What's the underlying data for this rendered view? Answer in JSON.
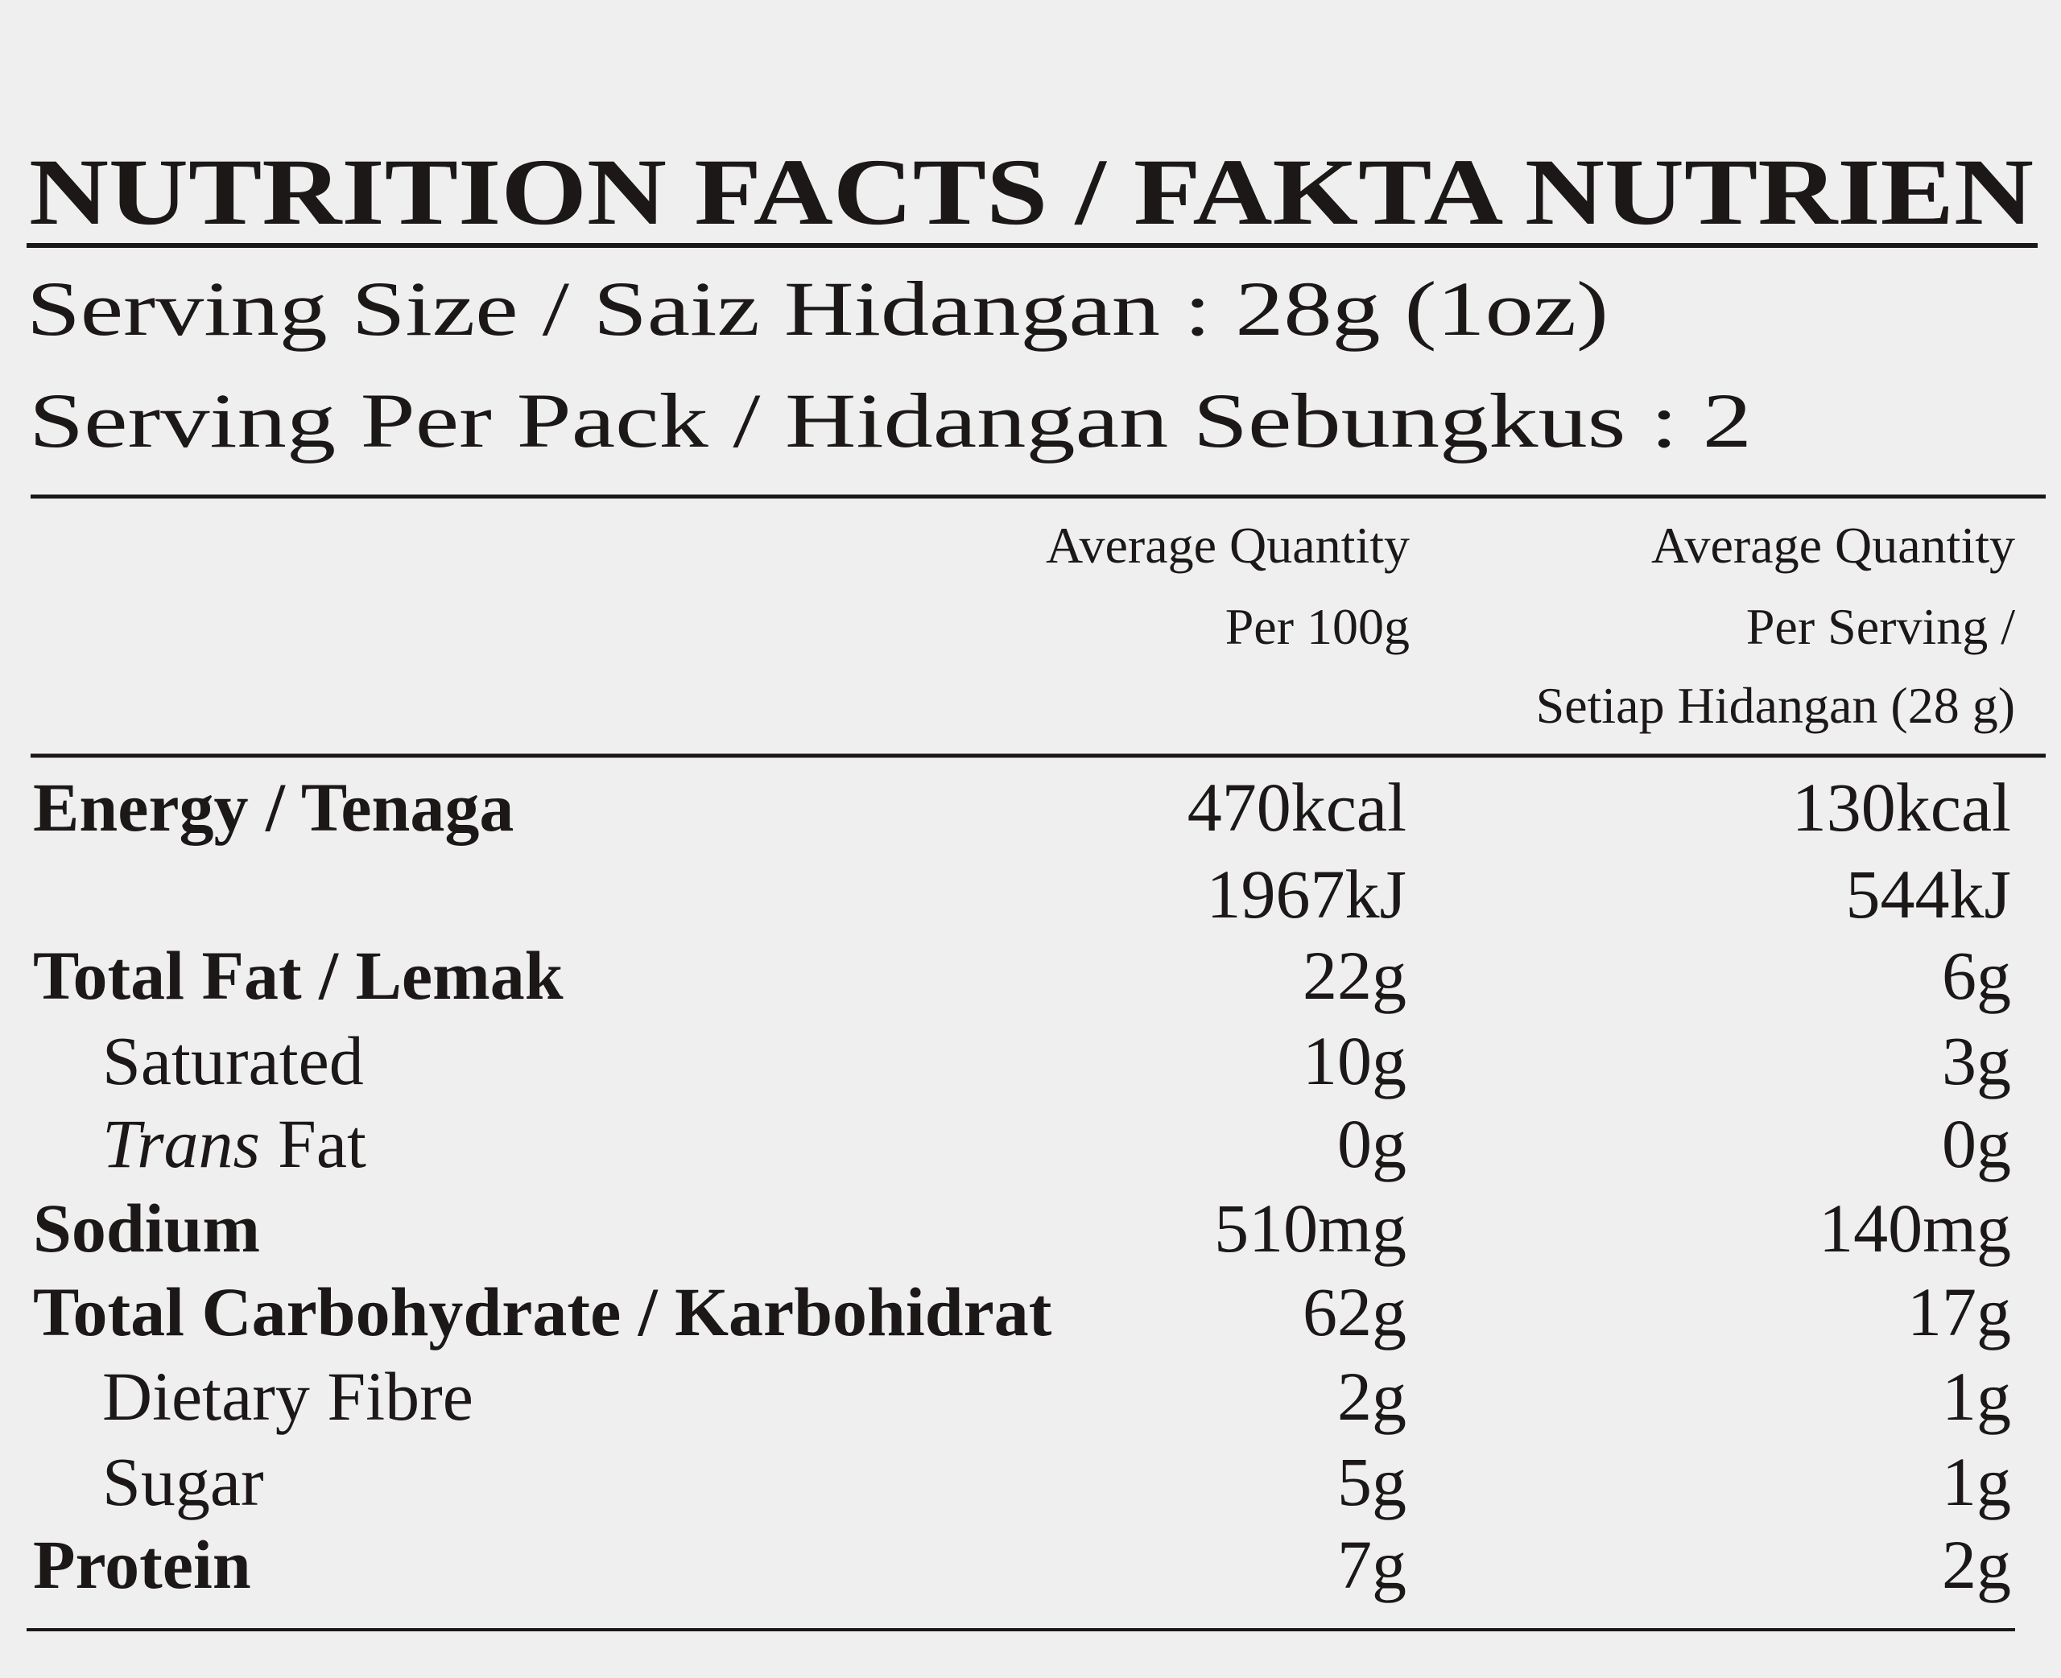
{
  "title": "NUTRITION FACTS / FAKTA NUTRIEN",
  "serving_size": "Serving Size / Saiz Hidangan : 28g (1oz)",
  "servings_per_pack": "Serving Per Pack / Hidangan Sebungkus : 2",
  "columns": [
    [
      "Average Quantity",
      "Per 100g"
    ],
    [
      "Average Quantity",
      "Per Serving /",
      "Setiap Hidangan (28 g)"
    ]
  ],
  "rows": [
    {
      "label": "Energy / Tenaga",
      "indent": false,
      "per_100g": [
        "470kcal",
        "1967kJ"
      ],
      "per_serving": [
        "130kcal",
        "544kJ"
      ]
    },
    {
      "label": "Total Fat / Lemak",
      "indent": false,
      "per_100g": [
        "22g"
      ],
      "per_serving": [
        "6g"
      ]
    },
    {
      "label": "Saturated",
      "indent": true,
      "per_100g": [
        "10g"
      ],
      "per_serving": [
        "3g"
      ]
    },
    {
      "label_italic": "Trans",
      "label": "Fat",
      "indent": true,
      "per_100g": [
        "0g"
      ],
      "per_serving": [
        "0g"
      ]
    },
    {
      "label": "Sodium",
      "indent": false,
      "per_100g": [
        "510mg"
      ],
      "per_serving": [
        "140mg"
      ]
    },
    {
      "label": "Total Carbohydrate / Karbohidrat",
      "indent": false,
      "per_100g": [
        "62g"
      ],
      "per_serving": [
        "17g"
      ]
    },
    {
      "label": "Dietary Fibre",
      "indent": true,
      "per_100g": [
        "2g"
      ],
      "per_serving": [
        "1g"
      ]
    },
    {
      "label": "Sugar",
      "indent": true,
      "per_100g": [
        "5g"
      ],
      "per_serving": [
        "1g"
      ]
    },
    {
      "label": "Protein",
      "indent": false,
      "per_100g": [
        "7g"
      ],
      "per_serving": [
        "2g"
      ]
    }
  ]
}
